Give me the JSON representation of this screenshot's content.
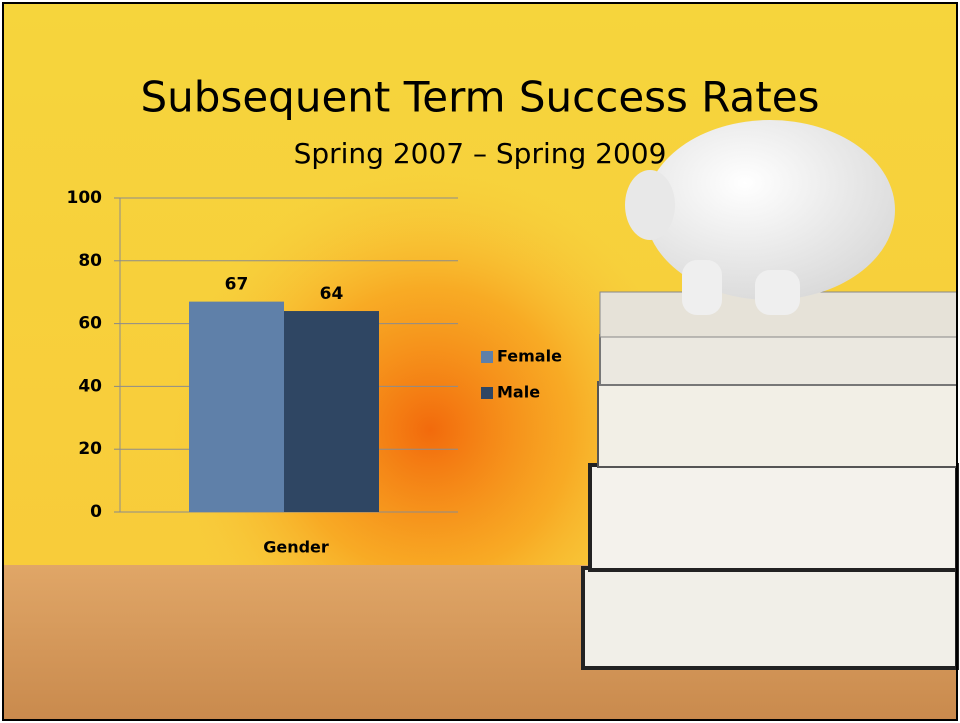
{
  "chart_data": {
    "type": "bar",
    "title": "Subsequent Term Success Rates",
    "subtitle": "Spring 2007 – Spring 2009",
    "categories": [
      "Gender"
    ],
    "series": [
      {
        "name": "Female",
        "color": "#5f80a9",
        "values": [
          67
        ]
      },
      {
        "name": "Male",
        "color": "#2f4663",
        "values": [
          64
        ]
      }
    ],
    "ylim": [
      0,
      100
    ],
    "yticks": [
      0,
      20,
      40,
      60,
      80,
      100
    ],
    "grid": true,
    "legend": "right"
  }
}
